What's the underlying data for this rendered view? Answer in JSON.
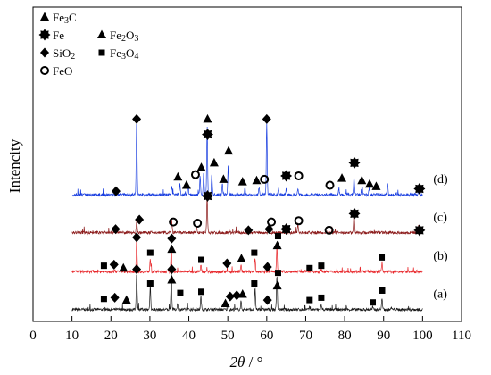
{
  "chart_data": {
    "type": "line",
    "xlabel_main": "2θ",
    "xlabel_unit": " / °",
    "ylabel": "Intencity",
    "xlim": [
      0,
      110
    ],
    "xticks": [
      0,
      10,
      20,
      30,
      40,
      50,
      60,
      70,
      80,
      90,
      100,
      110
    ],
    "yticks_shown": false,
    "legend": [
      {
        "symbol": "triangle",
        "label": "Fe3C"
      },
      {
        "symbol": "fe-star",
        "label": "Fe"
      },
      {
        "symbol": "triangle",
        "label": "Fe2O3"
      },
      {
        "symbol": "diamond",
        "label": "SiO2"
      },
      {
        "symbol": "square",
        "label": "Fe3O4"
      },
      {
        "symbol": "circle",
        "label": "FeO"
      }
    ],
    "series": [
      {
        "name": "(a)",
        "color": "#1a1a1a",
        "offset": 0,
        "x_range": [
          10,
          100
        ],
        "peaks": [
          [
            26.6,
            1.6
          ],
          [
            30.1,
            1.0
          ],
          [
            35.5,
            1.6
          ],
          [
            37.1,
            0.25
          ],
          [
            43.1,
            0.55
          ],
          [
            50.1,
            0.2
          ],
          [
            53.4,
            0.35
          ],
          [
            57.0,
            0.9
          ],
          [
            62.6,
            1.4
          ],
          [
            71.0,
            0.1
          ],
          [
            74.0,
            0.2
          ],
          [
            87.2,
            0.1
          ],
          [
            89.6,
            0.5
          ],
          [
            92.0,
            0.08
          ]
        ],
        "markers": [
          {
            "type": "square",
            "x": 18.2,
            "y": 0.5
          },
          {
            "type": "diamond",
            "x": 21.0,
            "y": 0.55
          },
          {
            "type": "triangle",
            "x": 24.0,
            "y": 0.45
          },
          {
            "type": "diamond",
            "x": 26.6,
            "y": 1.75
          },
          {
            "type": "square",
            "x": 30.1,
            "y": 1.15
          },
          {
            "type": "triangle",
            "x": 35.6,
            "y": 1.3
          },
          {
            "type": "diamond",
            "x": 35.6,
            "y": 1.75
          },
          {
            "type": "square",
            "x": 37.8,
            "y": 0.75
          },
          {
            "type": "square",
            "x": 43.2,
            "y": 0.8
          },
          {
            "type": "triangle",
            "x": 49.4,
            "y": 0.3
          },
          {
            "type": "diamond",
            "x": 50.6,
            "y": 0.6
          },
          {
            "type": "diamond",
            "x": 52.3,
            "y": 0.65
          },
          {
            "type": "triangle",
            "x": 53.8,
            "y": 0.7
          },
          {
            "type": "square",
            "x": 56.8,
            "y": 1.15
          },
          {
            "type": "diamond",
            "x": 60.2,
            "y": 0.45
          },
          {
            "type": "triangle",
            "x": 62.7,
            "y": 1.05
          },
          {
            "type": "square",
            "x": 62.9,
            "y": 1.6
          },
          {
            "type": "square",
            "x": 71.0,
            "y": 0.45
          },
          {
            "type": "square",
            "x": 74.0,
            "y": 0.55
          },
          {
            "type": "square",
            "x": 87.2,
            "y": 0.35
          },
          {
            "type": "square",
            "x": 89.6,
            "y": 0.85
          }
        ]
      },
      {
        "name": "(b)",
        "color": "#e8262a",
        "offset": 1.6,
        "x_range": [
          10,
          100
        ],
        "peaks": [
          [
            26.6,
            1.4
          ],
          [
            30.1,
            0.55
          ],
          [
            35.5,
            1.1
          ],
          [
            43.1,
            0.3
          ],
          [
            53.4,
            0.25
          ],
          [
            57.0,
            0.55
          ],
          [
            62.6,
            1.05
          ],
          [
            74.0,
            0.12
          ],
          [
            89.6,
            0.4
          ],
          [
            21.0,
            0.08
          ]
        ],
        "markers": [
          {
            "type": "square",
            "x": 18.2,
            "y": 0.3
          },
          {
            "type": "diamond",
            "x": 20.8,
            "y": 0.35
          },
          {
            "type": "triangle",
            "x": 23.2,
            "y": 0.2
          },
          {
            "type": "diamond",
            "x": 26.6,
            "y": 1.5
          },
          {
            "type": "square",
            "x": 30.1,
            "y": 0.85
          },
          {
            "type": "triangle",
            "x": 35.6,
            "y": 1.0
          },
          {
            "type": "diamond",
            "x": 35.6,
            "y": 1.45
          },
          {
            "type": "square",
            "x": 43.2,
            "y": 0.55
          },
          {
            "type": "diamond",
            "x": 49.8,
            "y": 0.4
          },
          {
            "type": "triangle",
            "x": 53.5,
            "y": 0.6
          },
          {
            "type": "square",
            "x": 56.8,
            "y": 0.85
          },
          {
            "type": "diamond",
            "x": 60.2,
            "y": 0.25
          },
          {
            "type": "triangle",
            "x": 62.7,
            "y": 1.15
          },
          {
            "type": "square",
            "x": 62.9,
            "y": 1.55
          },
          {
            "type": "square",
            "x": 71.0,
            "y": 0.2
          },
          {
            "type": "square",
            "x": 74.0,
            "y": 0.3
          },
          {
            "type": "square",
            "x": 89.5,
            "y": 0.65
          }
        ]
      },
      {
        "name": "(c)",
        "color": "#8b1a1a",
        "offset": 3.25,
        "x_range": [
          10,
          100
        ],
        "peaks": [
          [
            26.6,
            0.5
          ],
          [
            35.6,
            0.5
          ],
          [
            42.0,
            0.2
          ],
          [
            44.7,
            1.5
          ],
          [
            60.5,
            0.2
          ],
          [
            65.0,
            0.4
          ],
          [
            68.0,
            0.4
          ],
          [
            82.4,
            0.95
          ],
          [
            99.0,
            0.35
          ],
          [
            21.0,
            0.06
          ]
        ],
        "markers": [
          {
            "type": "diamond",
            "x": 21.2,
            "y": 0.2
          },
          {
            "type": "diamond",
            "x": 27.3,
            "y": 0.6
          },
          {
            "type": "circle",
            "x": 36.0,
            "y": 0.5
          },
          {
            "type": "circle",
            "x": 42.2,
            "y": 0.45
          },
          {
            "type": "fe-star",
            "x": 44.8,
            "y": 1.6
          },
          {
            "type": "diamond",
            "x": 55.3,
            "y": 0.15
          },
          {
            "type": "diamond",
            "x": 60.6,
            "y": 0.2
          },
          {
            "type": "circle",
            "x": 61.2,
            "y": 0.5
          },
          {
            "type": "fe-star",
            "x": 65.0,
            "y": 0.2
          },
          {
            "type": "circle",
            "x": 68.2,
            "y": 0.55
          },
          {
            "type": "circle",
            "x": 76.0,
            "y": 0.15
          },
          {
            "type": "fe-star",
            "x": 82.5,
            "y": 0.85
          },
          {
            "type": "fe-star",
            "x": 99.2,
            "y": 0.15
          }
        ]
      },
      {
        "name": "(d)",
        "color": "#1a3fe0",
        "offset": 4.85,
        "x_range": [
          10,
          100
        ],
        "peaks": [
          [
            26.6,
            3.1
          ],
          [
            35.6,
            0.35
          ],
          [
            37.7,
            0.45
          ],
          [
            39.8,
            0.35
          ],
          [
            42.9,
            0.8
          ],
          [
            43.8,
            0.9
          ],
          [
            44.7,
            2.9
          ],
          [
            45.9,
            0.9
          ],
          [
            48.6,
            0.45
          ],
          [
            50.1,
            1.2
          ],
          [
            54.4,
            0.3
          ],
          [
            58.0,
            0.3
          ],
          [
            60.0,
            3.1
          ],
          [
            63.0,
            0.25
          ],
          [
            65.0,
            0.3
          ],
          [
            68.0,
            0.3
          ],
          [
            78.5,
            0.3
          ],
          [
            82.4,
            0.8
          ],
          [
            84.5,
            0.35
          ],
          [
            86.3,
            0.3
          ],
          [
            91.0,
            0.5
          ],
          [
            99.0,
            0.35
          ]
        ],
        "markers": [
          {
            "type": "diamond",
            "x": 21.3,
            "y": 0.2
          },
          {
            "type": "diamond",
            "x": 26.6,
            "y": 3.25
          },
          {
            "type": "triangle",
            "x": 37.2,
            "y": 0.8
          },
          {
            "type": "triangle",
            "x": 39.4,
            "y": 0.45
          },
          {
            "type": "circle",
            "x": 41.7,
            "y": 0.9
          },
          {
            "type": "triangle",
            "x": 43.2,
            "y": 1.2
          },
          {
            "type": "fe-star",
            "x": 44.8,
            "y": 2.6
          },
          {
            "type": "triangle",
            "x": 44.8,
            "y": 3.25
          },
          {
            "type": "triangle",
            "x": 46.5,
            "y": 1.4
          },
          {
            "type": "triangle",
            "x": 48.9,
            "y": 0.7
          },
          {
            "type": "triangle",
            "x": 50.2,
            "y": 1.9
          },
          {
            "type": "triangle",
            "x": 53.8,
            "y": 0.6
          },
          {
            "type": "triangle",
            "x": 57.4,
            "y": 0.65
          },
          {
            "type": "circle",
            "x": 59.4,
            "y": 0.7
          },
          {
            "type": "diamond",
            "x": 60.0,
            "y": 3.25
          },
          {
            "type": "fe-star",
            "x": 65.0,
            "y": 0.85
          },
          {
            "type": "circle",
            "x": 68.2,
            "y": 0.85
          },
          {
            "type": "triangle",
            "x": 79.3,
            "y": 0.75
          },
          {
            "type": "circle",
            "x": 76.2,
            "y": 0.45
          },
          {
            "type": "fe-star",
            "x": 82.5,
            "y": 1.4
          },
          {
            "type": "triangle",
            "x": 84.4,
            "y": 0.65
          },
          {
            "type": "triangle",
            "x": 86.4,
            "y": 0.5
          },
          {
            "type": "triangle",
            "x": 88.1,
            "y": 0.4
          },
          {
            "type": "fe-star",
            "x": 99.2,
            "y": 0.3
          }
        ]
      }
    ]
  }
}
